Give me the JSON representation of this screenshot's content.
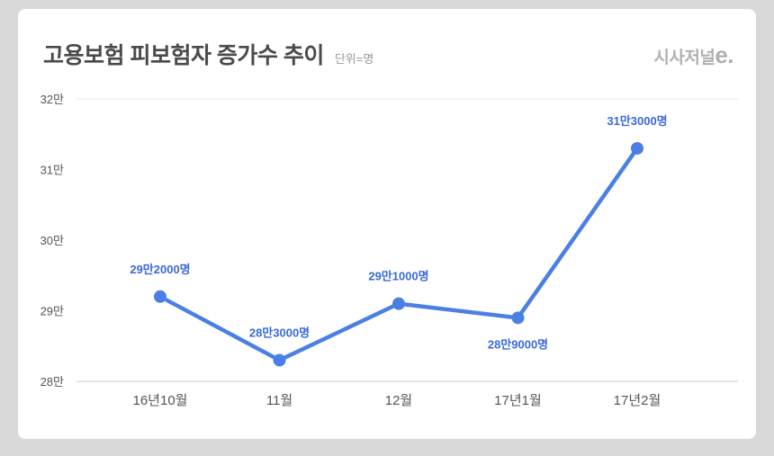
{
  "header": {
    "title": "고용보험 피보험자 증가수 추이",
    "unit_label": "단위=명",
    "logo_text": "시사저널",
    "logo_suffix": "e."
  },
  "chart_data": {
    "type": "line",
    "title": "고용보험 피보험자 증가수 추이",
    "unit": "명",
    "categories": [
      "16년10월",
      "11월",
      "12월",
      "17년1월",
      "17년2월"
    ],
    "values": [
      292000,
      283000,
      291000,
      289000,
      313000
    ],
    "point_labels": [
      "29만2000명",
      "28만3000명",
      "29만1000명",
      "28만9000명",
      "31만3000명"
    ],
    "label_positions": [
      "above",
      "above",
      "above",
      "below",
      "above"
    ],
    "y_tick_labels": [
      "32만",
      "31만",
      "30만",
      "29만",
      "28만"
    ],
    "y_tick_values": [
      320000,
      310000,
      300000,
      290000,
      280000
    ],
    "ylim": [
      280000,
      320000
    ],
    "grid": false,
    "legend": "none",
    "line_color": "#4a80e4",
    "point_color": "#4a80e4",
    "label_color": "#3a6ad8",
    "axis_text_color": "#555555",
    "axis_line_color": "#c8c8c8",
    "top_border_color": "#e7e7e7"
  }
}
